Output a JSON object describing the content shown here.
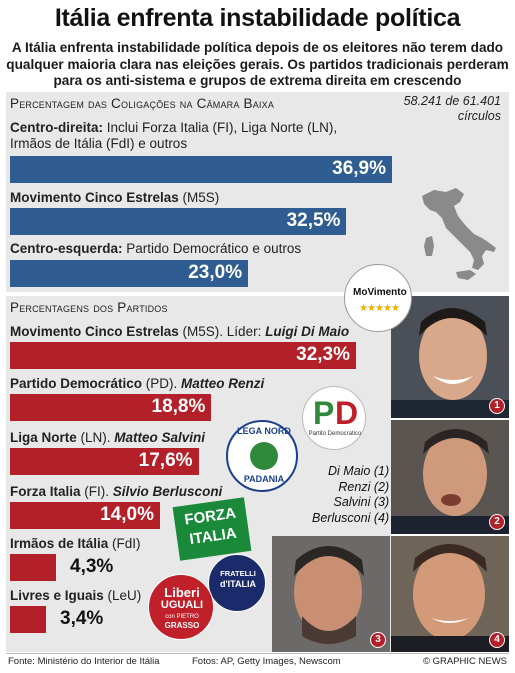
{
  "title": "Itália enfrenta instabilidade política",
  "subtitle": "A Itália enfrenta instabilidade política depois de os eleitores não terem dado qualquer maioria clara nas eleições gerais. Os partidos tradicionais perderam para os anti-sistema e grupos de extrema direita em crescendo",
  "coalitions": {
    "heading": "Percentagem das Coligações na Câmara Baixa",
    "circulos_line1": "58.241 de 61.401",
    "circulos_line2": "círculos",
    "items": [
      {
        "name": "Centro-direita:",
        "detail": " Inclui Forza Italia (FI), Liga Norte (LN),",
        "detail2": "Irmãos de Itália (FdI) e outros",
        "value": 36.9,
        "label": "36,9%"
      },
      {
        "name": "Movimento Cinco Estrelas",
        "detail": " (M5S)",
        "detail2": "",
        "value": 32.5,
        "label": "32,5%"
      },
      {
        "name": "Centro-esquerda:",
        "detail": " Partido Democrático e outros",
        "detail2": "",
        "value": 23.0,
        "label": "23,0%"
      }
    ],
    "bar_color": "#2f5d91"
  },
  "parties": {
    "heading": "Percentagens dos Partidos",
    "items": [
      {
        "name": "Movimento Cinco Estrelas",
        "abbr": " (M5S). Líder: ",
        "leader": "Luigi Di Maio",
        "value": 32.3,
        "label": "32,3%"
      },
      {
        "name": "Partido Democrático",
        "abbr": " (PD). ",
        "leader": "Matteo Renzi",
        "value": 18.8,
        "label": "18,8%"
      },
      {
        "name": "Liga Norte",
        "abbr": " (LN). ",
        "leader": "Matteo Salvini",
        "value": 17.6,
        "label": "17,6%"
      },
      {
        "name": "Forza Italia",
        "abbr": " (FI). ",
        "leader": "Silvio Berlusconi",
        "value": 14.0,
        "label": "14,0%"
      },
      {
        "name": "Irmãos de Itália",
        "abbr": " (FdI)",
        "leader": "",
        "value": 4.3,
        "label": "4,3%"
      },
      {
        "name": "Livres e Iguais",
        "abbr": " (LeU)",
        "leader": "",
        "value": 3.4,
        "label": "3,4%"
      }
    ],
    "bar_color": "#b3202a"
  },
  "leaders_legend": [
    "Di Maio (1)",
    "Renzi (2)",
    "Salvini (3)",
    "Berlusconi (4)"
  ],
  "photo_numbers": [
    "1",
    "2",
    "3",
    "4"
  ],
  "logos": {
    "m5s": "MoVimento",
    "pd": "Partito Democratico",
    "lega_top": "LEGA NORD",
    "lega_bottom": "PADANIA",
    "forza1": "FORZA",
    "forza2": "ITALIA",
    "fratelli1": "FRATELLI",
    "fratelli2": "d'ITALIA",
    "leu1": "Liberi",
    "leu2": "UGUALI",
    "leu3": "con PIETRO",
    "leu4": "GRASSO"
  },
  "watermark": "GRAPHIC NEWS",
  "footer": {
    "source": "Fonte: Ministério do Interior de Itália",
    "photos": "Fotos: AP, Getty Images, Newscom",
    "copyright": "© GRAPHIC NEWS"
  }
}
